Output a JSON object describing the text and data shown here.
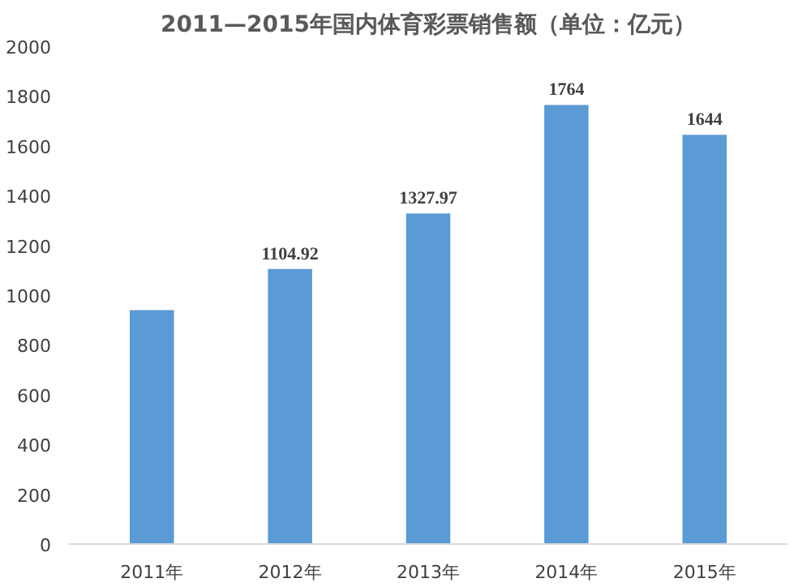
{
  "chart_data": {
    "type": "bar",
    "title": "2011—2015年国内体育彩票销售额（单位：亿元）",
    "categories": [
      "2011年",
      "2012年",
      "2013年",
      "2014年",
      "2015年"
    ],
    "values": [
      940,
      1104.92,
      1327.97,
      1764,
      1644
    ],
    "value_labels": [
      null,
      "1104.92",
      "1327.97",
      "1764",
      "1644"
    ],
    "color": "#5b9bd5",
    "ylim": [
      0,
      2000
    ],
    "yticks": [
      0,
      200,
      400,
      600,
      800,
      1000,
      1200,
      1400,
      1600,
      1800,
      2000
    ],
    "grid": false
  }
}
